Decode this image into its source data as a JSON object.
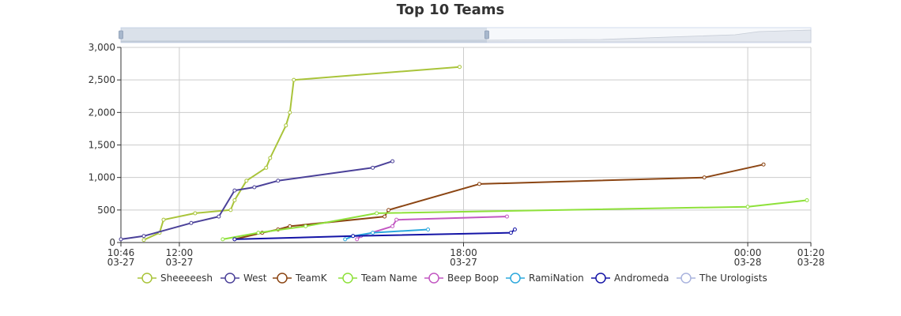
{
  "chart_data": {
    "type": "line",
    "title": "Top 10 Teams",
    "x_axis": {
      "type": "time",
      "range": [
        "03-27 10:46",
        "03-28 01:20"
      ],
      "ticks": [
        {
          "t": "03-27 10:46",
          "line1": "10:46",
          "line2": "03-27"
        },
        {
          "t": "03-27 12:00",
          "line1": "12:00",
          "line2": "03-27"
        },
        {
          "t": "03-27 18:00",
          "line1": "18:00",
          "line2": "03-27"
        },
        {
          "t": "03-28 00:00",
          "line1": "00:00",
          "line2": "03-28"
        },
        {
          "t": "03-28 01:20",
          "line1": "01:20",
          "line2": "03-28"
        }
      ]
    },
    "y_axis": {
      "range": [
        0,
        3000
      ],
      "ticks": [
        {
          "v": 0,
          "label": "0"
        },
        {
          "v": 500,
          "label": "500"
        },
        {
          "v": 1000,
          "label": "1,000"
        },
        {
          "v": 1500,
          "label": "1,500"
        },
        {
          "v": 2000,
          "label": "2,000"
        },
        {
          "v": 2500,
          "label": "2,500"
        },
        {
          "v": 3000,
          "label": "3,000"
        }
      ]
    },
    "grid": true,
    "legend_position": "bottom",
    "data_zoom_slider": true,
    "series": [
      {
        "name": "Sheeeeesh",
        "color": "#a9c43a",
        "points": [
          [
            "03-27 11:15",
            40
          ],
          [
            "03-27 11:35",
            150
          ],
          [
            "03-27 11:40",
            350
          ],
          [
            "03-27 12:20",
            450
          ],
          [
            "03-27 13:05",
            500
          ],
          [
            "03-27 13:10",
            650
          ],
          [
            "03-27 13:25",
            950
          ],
          [
            "03-27 13:50",
            1150
          ],
          [
            "03-27 13:55",
            1300
          ],
          [
            "03-27 14:15",
            1800
          ],
          [
            "03-27 14:20",
            2000
          ],
          [
            "03-27 14:25",
            2500
          ],
          [
            "03-27 17:55",
            2700
          ]
        ]
      },
      {
        "name": "West",
        "color": "#4b4199",
        "points": [
          [
            "03-27 10:46",
            50
          ],
          [
            "03-27 11:15",
            100
          ],
          [
            "03-27 12:15",
            300
          ],
          [
            "03-27 12:50",
            400
          ],
          [
            "03-27 13:10",
            800
          ],
          [
            "03-27 13:35",
            850
          ],
          [
            "03-27 14:05",
            950
          ],
          [
            "03-27 16:05",
            1150
          ],
          [
            "03-27 16:30",
            1250
          ]
        ]
      },
      {
        "name": "TeamK",
        "color": "#8b4513",
        "points": [
          [
            "03-27 13:10",
            50
          ],
          [
            "03-27 13:45",
            150
          ],
          [
            "03-27 14:05",
            200
          ],
          [
            "03-27 14:20",
            250
          ],
          [
            "03-27 16:20",
            400
          ],
          [
            "03-27 16:25",
            500
          ],
          [
            "03-27 18:20",
            900
          ],
          [
            "03-27 23:05",
            1000
          ],
          [
            "03-28 00:20",
            1200
          ]
        ]
      },
      {
        "name": "Team Name",
        "color": "#8ee13a",
        "points": [
          [
            "03-27 12:55",
            50
          ],
          [
            "03-27 13:40",
            150
          ],
          [
            "03-27 14:40",
            250
          ],
          [
            "03-27 16:10",
            450
          ],
          [
            "03-28 00:00",
            550
          ],
          [
            "03-28 01:15",
            650
          ]
        ]
      },
      {
        "name": "Beep Boop",
        "color": "#c257c2",
        "points": [
          [
            "03-27 15:45",
            50
          ],
          [
            "03-27 15:50",
            100
          ],
          [
            "03-27 16:30",
            250
          ],
          [
            "03-27 16:35",
            350
          ],
          [
            "03-27 18:55",
            400
          ]
        ]
      },
      {
        "name": "RamiNation",
        "color": "#2ca8dd",
        "points": [
          [
            "03-27 15:30",
            50
          ],
          [
            "03-27 15:40",
            100
          ],
          [
            "03-27 16:05",
            150
          ],
          [
            "03-27 17:15",
            200
          ]
        ]
      },
      {
        "name": "Andromeda",
        "color": "#1414a6",
        "points": [
          [
            "03-27 13:10",
            50
          ],
          [
            "03-27 15:40",
            100
          ],
          [
            "03-27 19:00",
            150
          ],
          [
            "03-27 19:05",
            200
          ]
        ]
      },
      {
        "name": "The Urologists",
        "color": "#aab4de",
        "points": []
      }
    ]
  }
}
